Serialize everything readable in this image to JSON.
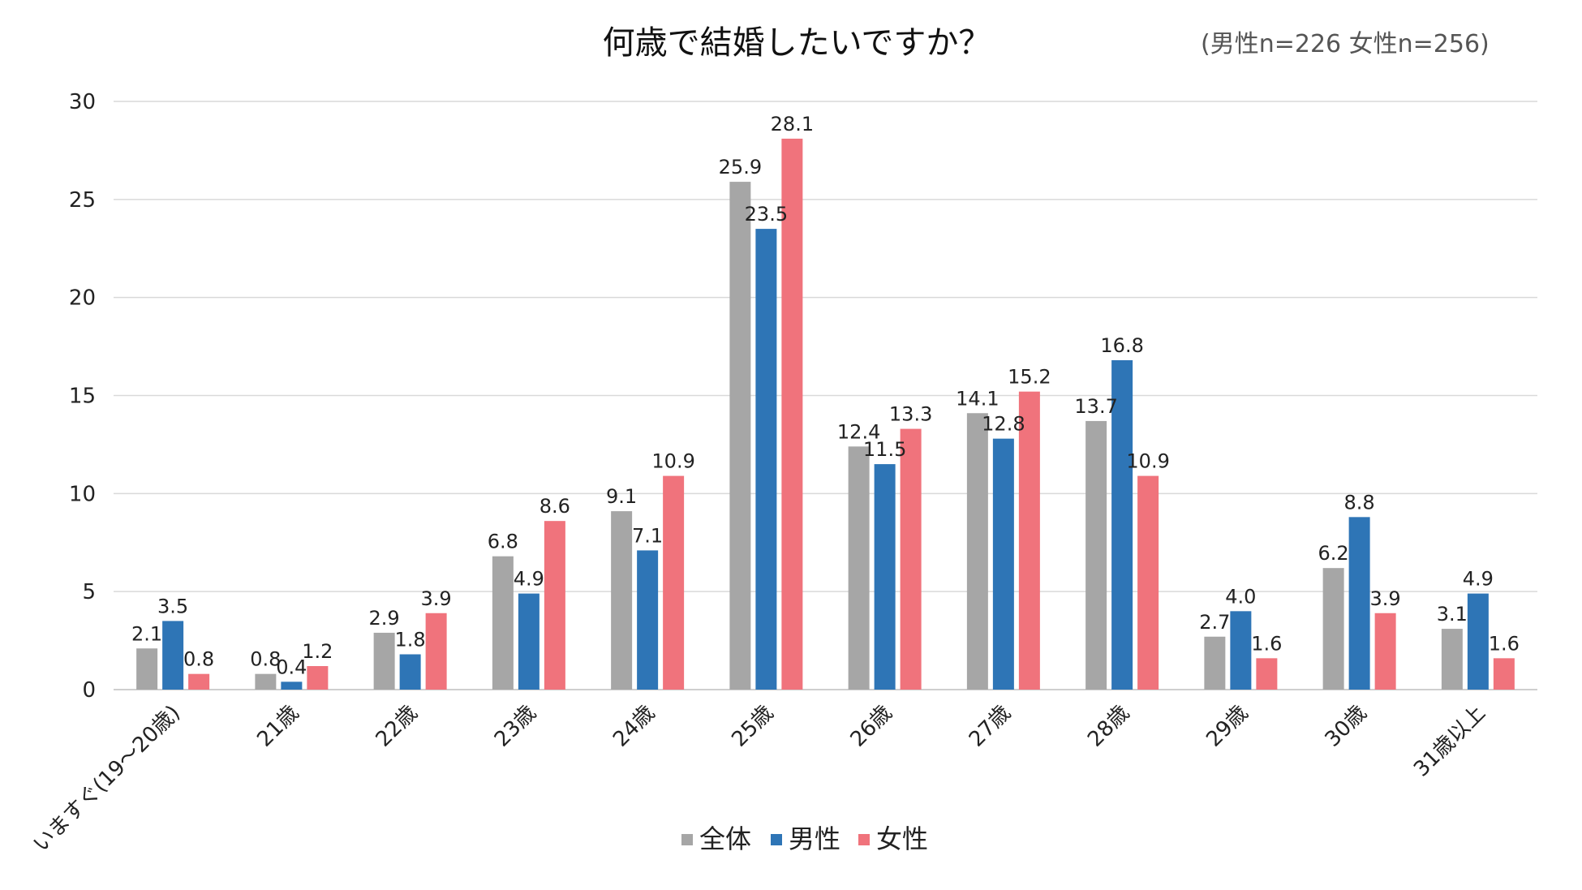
{
  "chart_data": {
    "type": "bar",
    "title": "何歳で結婚したいですか？",
    "subtitle": "(男性n=226 女性n=256)",
    "xlabel": "",
    "ylabel": "",
    "ylim": [
      0,
      30
    ],
    "yticks": [
      0,
      5,
      10,
      15,
      20,
      25,
      30
    ],
    "grid": true,
    "legend_position": "bottom",
    "categories": [
      "いますぐ(19～20歳)",
      "21歳",
      "22歳",
      "23歳",
      "24歳",
      "25歳",
      "26歳",
      "27歳",
      "28歳",
      "29歳",
      "30歳",
      "31歳以上"
    ],
    "series": [
      {
        "name": "全体",
        "color": "#a6a6a6",
        "values": [
          2.1,
          0.8,
          2.9,
          6.8,
          9.1,
          25.9,
          12.4,
          14.1,
          13.7,
          2.7,
          6.2,
          3.1
        ]
      },
      {
        "name": "男性",
        "color": "#2e75b6",
        "values": [
          3.5,
          0.4,
          1.8,
          4.9,
          7.1,
          23.5,
          11.5,
          12.8,
          16.8,
          4.0,
          8.8,
          4.9
        ]
      },
      {
        "name": "女性",
        "color": "#f0737c",
        "values": [
          0.8,
          1.2,
          3.9,
          8.6,
          10.9,
          28.1,
          13.3,
          15.2,
          10.9,
          1.6,
          3.9,
          1.6
        ]
      }
    ]
  }
}
